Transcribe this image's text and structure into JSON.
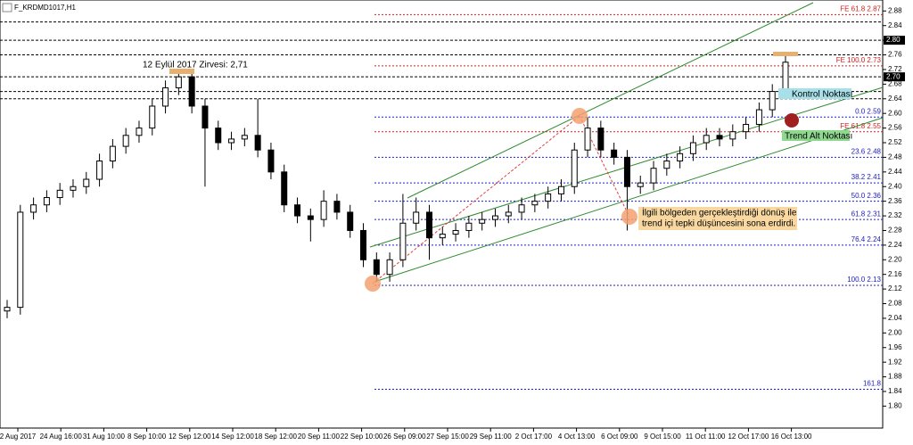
{
  "title": "F_KRDMD1017,H1",
  "chart_data": {
    "type": "candlestick",
    "ylim": [
      1.74,
      2.91
    ],
    "yticks": [
      2.88,
      2.84,
      {
        "value": 2.8,
        "label": "2.80"
      },
      2.76,
      2.72,
      2.68,
      2.64,
      {
        "value": 2.6,
        "label": "2.60"
      },
      2.56,
      2.52,
      2.48,
      2.44,
      {
        "value": 2.4,
        "label": "2.40"
      },
      2.36,
      2.32,
      2.28,
      2.24,
      {
        "value": 2.2,
        "label": "2.20"
      },
      2.16,
      2.12,
      2.08,
      2.04,
      {
        "value": 2.0,
        "label": "2.00"
      },
      1.96,
      1.92,
      1.88,
      1.84,
      {
        "value": 1.8,
        "label": "1.80"
      }
    ],
    "x_labels": [
      "2 Aug 2017",
      "24 Aug 16:00",
      "31 Aug 10:00",
      "8 Sep 10:00",
      "12 Sep 12:00",
      "14 Sep 12:00",
      "18 Sep 12:00",
      "20 Sep 11:00",
      "22 Sep 10:00",
      "26 Sep 09:00",
      "27 Sep 15:00",
      "29 Sep 11:00",
      "2 Oct 17:00",
      "4 Oct 13:00",
      "6 Oct 09:00",
      "9 Oct 15:00",
      "11 Oct 11:00",
      "12 Oct 17:00",
      "16 Oct 13:00"
    ],
    "ohlc": [
      [
        2.06,
        2.09,
        2.04,
        2.07
      ],
      [
        2.07,
        2.35,
        2.05,
        2.33
      ],
      [
        2.33,
        2.37,
        2.31,
        2.35
      ],
      [
        2.35,
        2.39,
        2.33,
        2.37
      ],
      [
        2.37,
        2.41,
        2.35,
        2.39
      ],
      [
        2.39,
        2.42,
        2.37,
        2.4
      ],
      [
        2.4,
        2.44,
        2.38,
        2.42
      ],
      [
        2.42,
        2.49,
        2.4,
        2.47
      ],
      [
        2.47,
        2.53,
        2.45,
        2.51
      ],
      [
        2.51,
        2.56,
        2.49,
        2.54
      ],
      [
        2.54,
        2.58,
        2.52,
        2.56
      ],
      [
        2.56,
        2.64,
        2.54,
        2.62
      ],
      [
        2.62,
        2.69,
        2.6,
        2.67
      ],
      [
        2.67,
        2.72,
        2.65,
        2.7
      ],
      [
        2.7,
        2.71,
        2.6,
        2.62
      ],
      [
        2.62,
        2.64,
        2.4,
        2.56
      ],
      [
        2.56,
        2.58,
        2.5,
        2.52
      ],
      [
        2.52,
        2.55,
        2.5,
        2.53
      ],
      [
        2.53,
        2.56,
        2.51,
        2.54
      ],
      [
        2.54,
        2.64,
        2.48,
        2.5
      ],
      [
        2.5,
        2.52,
        2.42,
        2.44
      ],
      [
        2.44,
        2.46,
        2.33,
        2.35
      ],
      [
        2.35,
        2.37,
        2.3,
        2.32
      ],
      [
        2.32,
        2.34,
        2.25,
        2.31
      ],
      [
        2.31,
        2.39,
        2.29,
        2.36
      ],
      [
        2.36,
        2.38,
        2.31,
        2.33
      ],
      [
        2.33,
        2.35,
        2.26,
        2.28
      ],
      [
        2.28,
        2.3,
        2.18,
        2.2
      ],
      [
        2.2,
        2.22,
        2.14,
        2.16
      ],
      [
        2.16,
        2.22,
        2.14,
        2.2
      ],
      [
        2.2,
        2.38,
        2.18,
        2.3
      ],
      [
        2.3,
        2.37,
        2.28,
        2.33
      ],
      [
        2.33,
        2.35,
        2.2,
        2.26
      ],
      [
        2.26,
        2.29,
        2.24,
        2.27
      ],
      [
        2.27,
        2.3,
        2.25,
        2.28
      ],
      [
        2.28,
        2.32,
        2.26,
        2.3
      ],
      [
        2.3,
        2.33,
        2.28,
        2.31
      ],
      [
        2.31,
        2.34,
        2.29,
        2.32
      ],
      [
        2.32,
        2.35,
        2.3,
        2.33
      ],
      [
        2.33,
        2.37,
        2.31,
        2.35
      ],
      [
        2.35,
        2.38,
        2.33,
        2.36
      ],
      [
        2.36,
        2.4,
        2.34,
        2.38
      ],
      [
        2.38,
        2.42,
        2.36,
        2.4
      ],
      [
        2.4,
        2.52,
        2.38,
        2.5
      ],
      [
        2.5,
        2.59,
        2.48,
        2.56
      ],
      [
        2.56,
        2.58,
        2.48,
        2.5
      ],
      [
        2.5,
        2.52,
        2.46,
        2.48
      ],
      [
        2.48,
        2.5,
        2.28,
        2.4
      ],
      [
        2.4,
        2.43,
        2.38,
        2.41
      ],
      [
        2.41,
        2.47,
        2.39,
        2.45
      ],
      [
        2.45,
        2.49,
        2.43,
        2.47
      ],
      [
        2.47,
        2.51,
        2.45,
        2.49
      ],
      [
        2.49,
        2.54,
        2.47,
        2.52
      ],
      [
        2.52,
        2.56,
        2.5,
        2.54
      ],
      [
        2.54,
        2.56,
        2.51,
        2.53
      ],
      [
        2.53,
        2.57,
        2.51,
        2.55
      ],
      [
        2.55,
        2.59,
        2.53,
        2.57
      ],
      [
        2.57,
        2.63,
        2.55,
        2.61
      ],
      [
        2.61,
        2.68,
        2.59,
        2.66
      ],
      [
        2.66,
        2.76,
        2.64,
        2.74
      ]
    ],
    "levels": [
      2.85,
      {
        "value": 2.8,
        "label": "2.80"
      },
      2.76,
      {
        "value": 2.7,
        "label": "2.70"
      },
      2.66,
      2.64
    ],
    "fib": [
      {
        "value": 2.59,
        "label": "0.0 2.59"
      },
      {
        "value": 2.48,
        "label": "23.6 2.48"
      },
      {
        "value": 2.41,
        "label": "38.2 2.41"
      },
      {
        "value": 2.36,
        "label": "50.0 2.36"
      },
      {
        "value": 2.31,
        "label": "61.8 2.31"
      },
      {
        "value": 2.24,
        "label": "76.4 2.24"
      },
      {
        "value": 2.13,
        "label": "100.0 2.13"
      },
      {
        "value": 1.846,
        "label": "161.8"
      }
    ],
    "fe": [
      {
        "value": 2.87,
        "label": "FE 61.8 2.87"
      },
      {
        "value": 2.73,
        "label": "FE 100.0 2.73"
      },
      {
        "value": 2.55,
        "label": "FE 61.8 2.55"
      }
    ],
    "annotations": {
      "peak": "12 Eylül 2017 Zirvesi: 2,71",
      "control": "Kontrol Noktası",
      "trend_low": "Trend Alt Noktası",
      "note": [
        "İlgili bölgeden gerçekleştirdiği dönüş ile",
        "trend içi tepki düşüncesini sona erdirdi."
      ]
    }
  }
}
